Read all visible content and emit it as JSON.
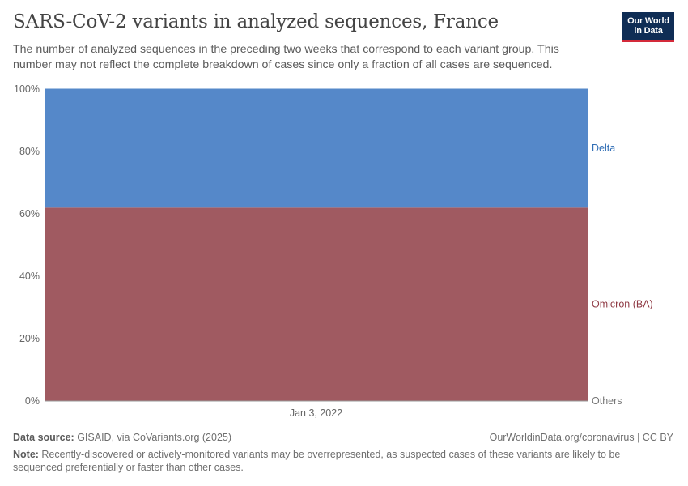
{
  "header": {
    "title": "SARS-CoV-2 variants in analyzed sequences, France",
    "subtitle": "The number of analyzed sequences in the preceding two weeks that correspond to each variant group. This number may not reflect the complete breakdown of cases since only a fraction of all cases are sequenced."
  },
  "logo": {
    "line1": "Our World",
    "line2": "in Data"
  },
  "footer": {
    "source_label": "Data source:",
    "source_text": " GISAID, via CoVariants.org (2025)",
    "license": "OurWorldinData.org/coronavirus | CC BY",
    "note_label": "Note:",
    "note_text": " Recently-discovered or actively-monitored variants may be overrepresented, as suspected cases of these variants are likely to be sequenced preferentially or faster than other cases."
  },
  "chart_data": {
    "type": "area",
    "stacked": true,
    "normalized": true,
    "x": [
      "Jan 3, 2022"
    ],
    "ylim": [
      0,
      100
    ],
    "y_ticks": [
      "0%",
      "20%",
      "40%",
      "60%",
      "80%",
      "100%"
    ],
    "legend_placement": "right",
    "grid": "horizontal",
    "series": [
      {
        "name": "Others",
        "values": [
          0
        ],
        "color": "#a2a2a2"
      },
      {
        "name": "Omicron (BA)",
        "values": [
          62
        ],
        "color": "#a05a61"
      },
      {
        "name": "Delta",
        "values": [
          38
        ],
        "color": "#5588c9"
      }
    ],
    "label_colors": {
      "Others": "#777777",
      "Omicron (BA)": "#8f3a44",
      "Delta": "#2f6db5"
    }
  }
}
